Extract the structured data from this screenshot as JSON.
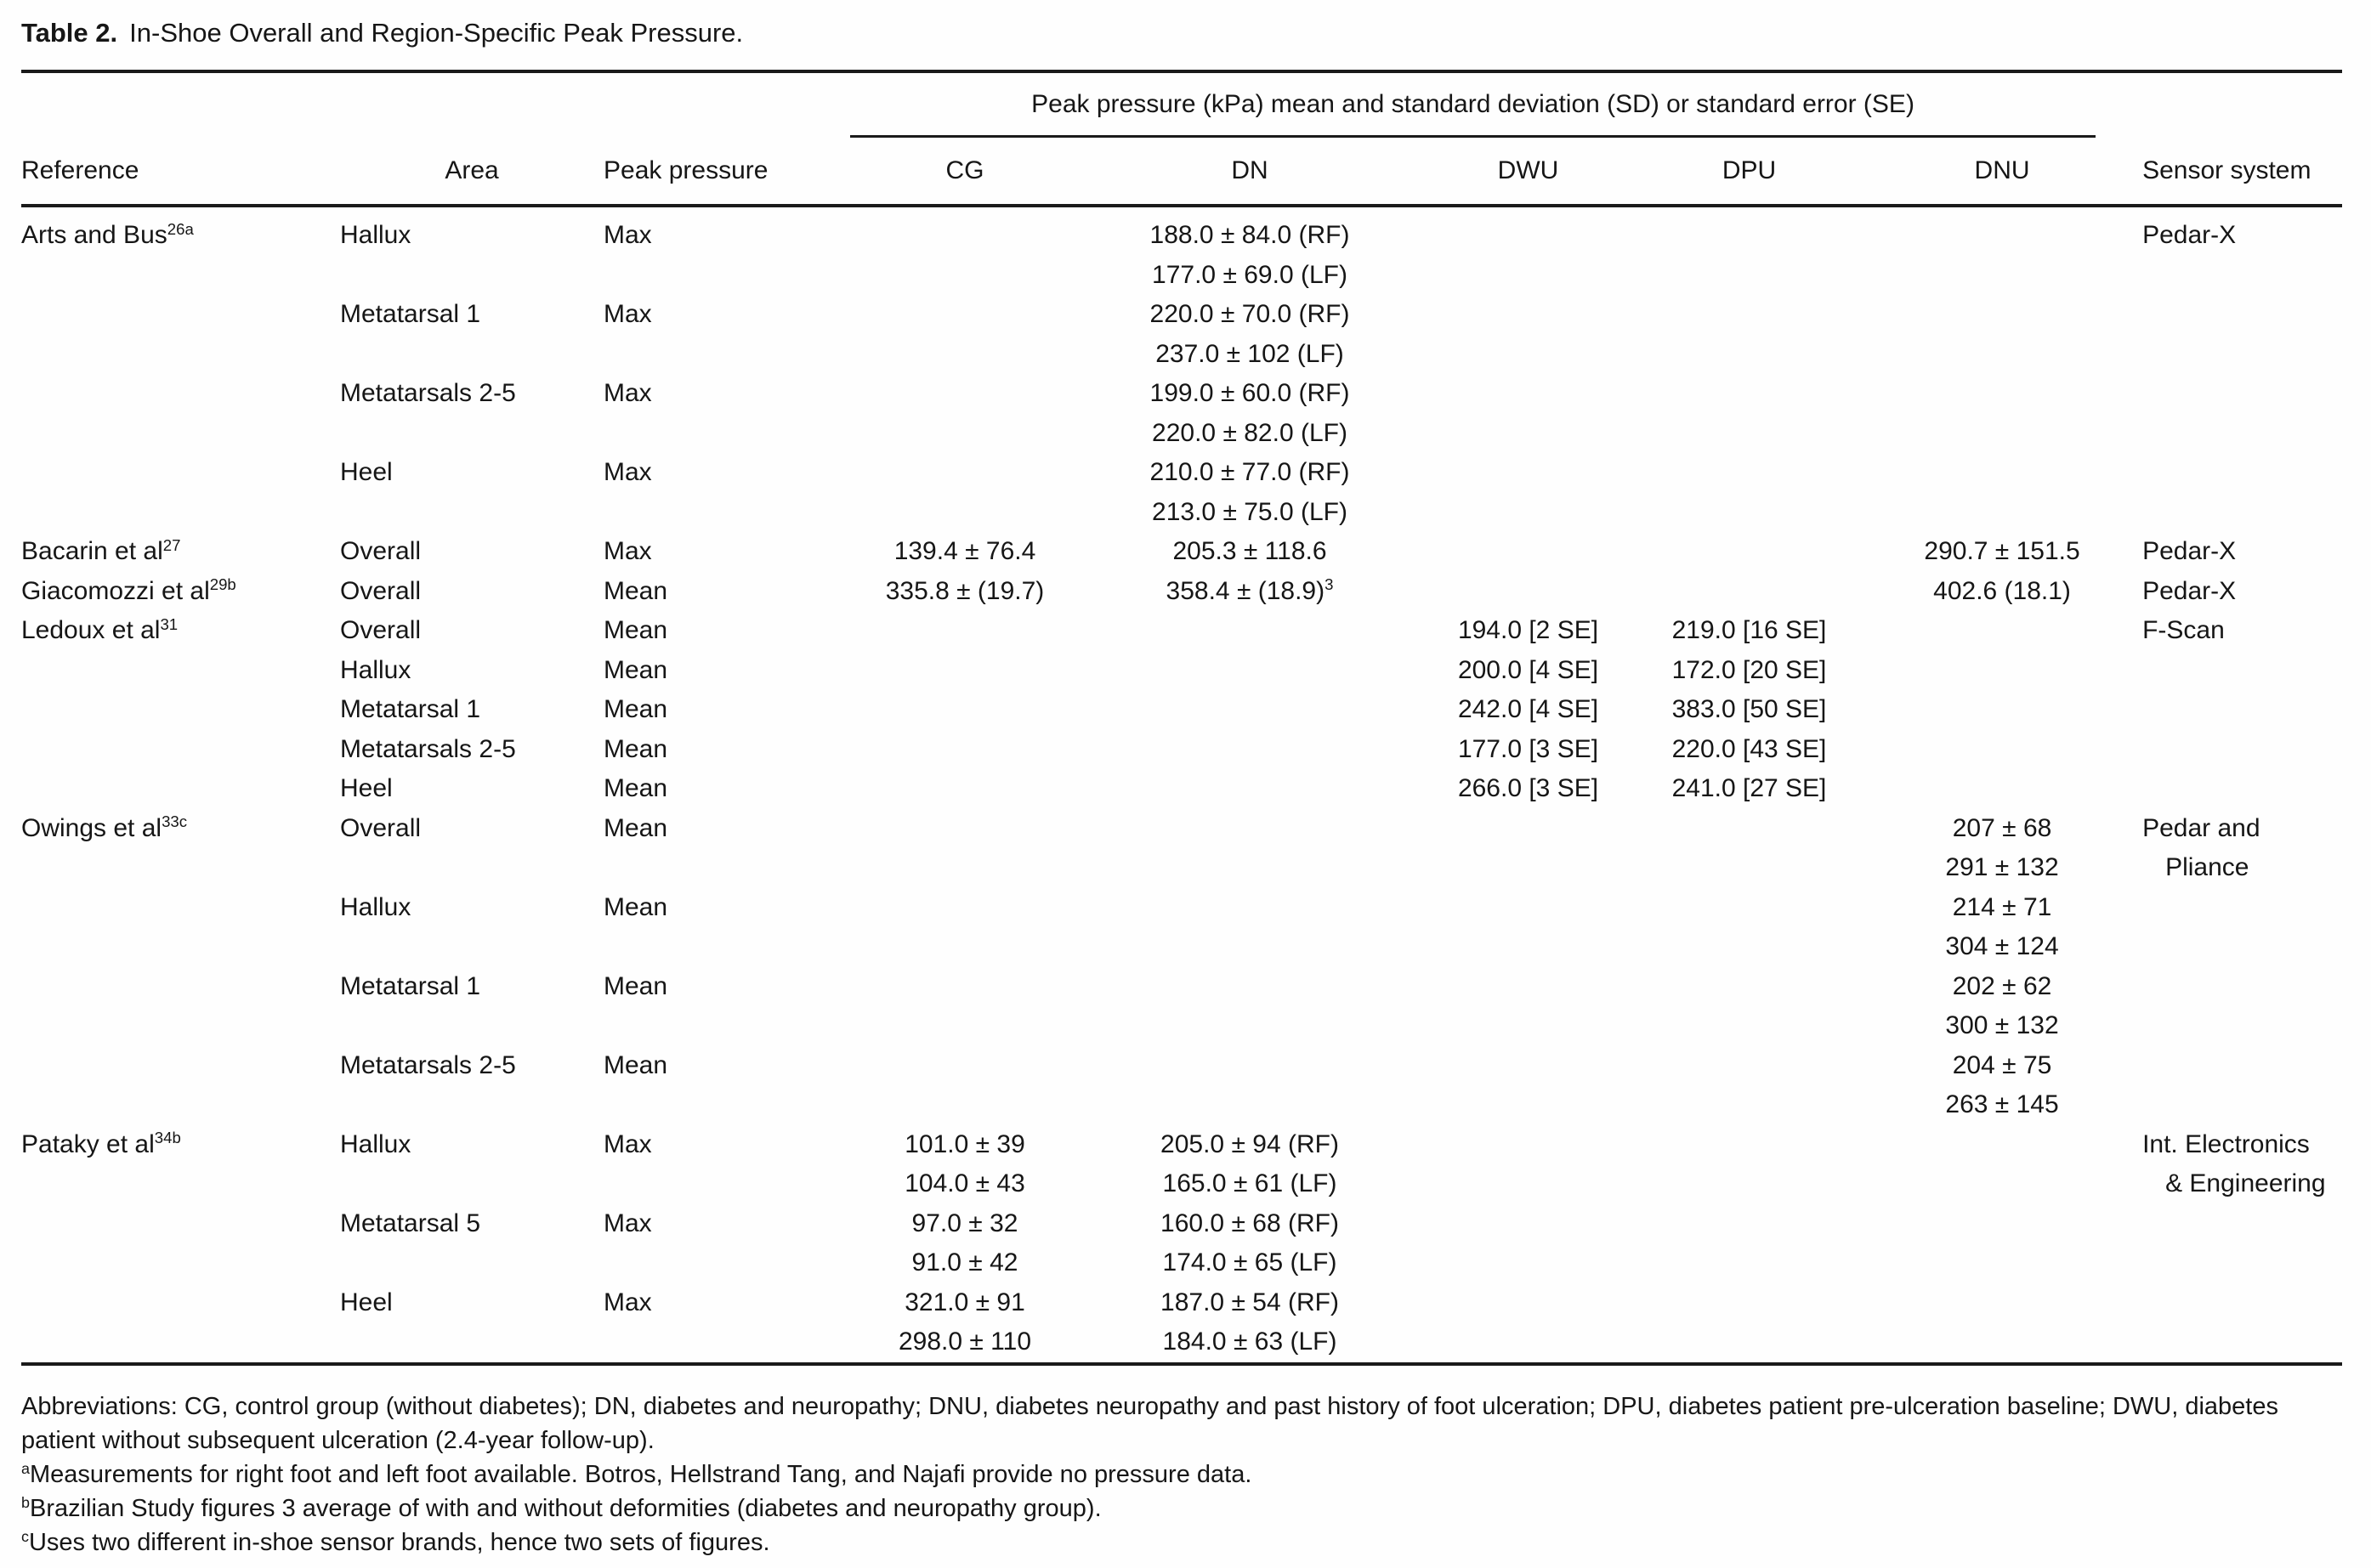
{
  "title": {
    "label": "Table 2.",
    "text": "In-Shoe Overall and Region-Specific Peak Pressure."
  },
  "table": {
    "spanner": "Peak pressure (kPa) mean and standard deviation (SD) or standard error (SE)",
    "columns": {
      "reference": "Reference",
      "area": "Area",
      "peak_pressure": "Peak pressure",
      "cg": "CG",
      "dn": "DN",
      "dwu": "DWU",
      "dpu": "DPU",
      "dnu": "DNU",
      "sensor_system": "Sensor system"
    },
    "rows": [
      {
        "ref": "Arts and Bus",
        "ref_sup": "26a",
        "area": "Hallux",
        "peak": "Max",
        "dn": [
          "188.0 ± 84.0 (RF)",
          "177.0 ± 69.0 (LF)"
        ],
        "sensor": [
          "Pedar-X"
        ]
      },
      {
        "area": "Metatarsal 1",
        "peak": "Max",
        "dn": [
          "220.0 ± 70.0 (RF)",
          "237.0 ± 102 (LF)"
        ]
      },
      {
        "area": "Metatarsals 2-5",
        "peak": "Max",
        "dn": [
          "199.0 ± 60.0 (RF)",
          "220.0 ± 82.0 (LF)"
        ]
      },
      {
        "area": "Heel",
        "peak": "Max",
        "dn": [
          "210.0 ± 77.0 (RF)",
          "213.0 ± 75.0 (LF)"
        ]
      },
      {
        "ref": "Bacarin et al",
        "ref_sup": "27",
        "area": "Overall",
        "peak": "Max",
        "cg": [
          "139.4 ± 76.4"
        ],
        "dn": [
          "205.3 ± 118.6"
        ],
        "dnu": [
          "290.7 ± 151.5"
        ],
        "sensor": [
          "Pedar-X"
        ]
      },
      {
        "ref": "Giacomozzi et al",
        "ref_sup": "29b",
        "area": "Overall",
        "peak": "Mean",
        "cg": [
          "335.8 ± (19.7)"
        ],
        "dn": [
          {
            "t": "358.4 ± (18.9)",
            "sup": "3"
          }
        ],
        "dnu": [
          "402.6 (18.1)"
        ],
        "sensor": [
          "Pedar-X"
        ]
      },
      {
        "ref": "Ledoux et al",
        "ref_sup": "31",
        "area": "Overall",
        "peak": "Mean",
        "dwu": [
          "194.0 [2 SE]"
        ],
        "dpu": [
          "219.0 [16 SE]"
        ],
        "sensor": [
          "F-Scan"
        ]
      },
      {
        "area": "Hallux",
        "peak": "Mean",
        "dwu": [
          "200.0 [4 SE]"
        ],
        "dpu": [
          "172.0 [20 SE]"
        ]
      },
      {
        "area": "Metatarsal 1",
        "peak": "Mean",
        "dwu": [
          "242.0 [4 SE]"
        ],
        "dpu": [
          "383.0 [50 SE]"
        ]
      },
      {
        "area": "Metatarsals 2-5",
        "peak": "Mean",
        "dwu": [
          "177.0 [3 SE]"
        ],
        "dpu": [
          "220.0 [43 SE]"
        ]
      },
      {
        "area": "Heel",
        "peak": "Mean",
        "dwu": [
          "266.0 [3 SE]"
        ],
        "dpu": [
          "241.0 [27 SE]"
        ]
      },
      {
        "ref": "Owings et al",
        "ref_sup": "33c",
        "area": "Overall",
        "peak": "Mean",
        "dnu": [
          "207 ± 68",
          "291 ± 132"
        ],
        "sensor": [
          "Pedar and",
          "Pliance"
        ]
      },
      {
        "area": "Hallux",
        "peak": "Mean",
        "dnu": [
          "214 ± 71",
          "304 ± 124"
        ]
      },
      {
        "area": "Metatarsal 1",
        "peak": "Mean",
        "dnu": [
          "202 ± 62",
          "300 ± 132"
        ]
      },
      {
        "area": "Metatarsals 2-5",
        "peak": "Mean",
        "dnu": [
          "204 ± 75",
          "263 ± 145"
        ]
      },
      {
        "ref": "Pataky et al",
        "ref_sup": "34b",
        "area": "Hallux",
        "peak": "Max",
        "cg": [
          "101.0 ± 39",
          "104.0 ± 43"
        ],
        "dn": [
          "205.0 ± 94 (RF)",
          "165.0 ± 61 (LF)"
        ],
        "sensor": [
          "Int. Electronics",
          "& Engineering"
        ]
      },
      {
        "area": "Metatarsal 5",
        "peak": "Max",
        "cg": [
          "97.0 ± 32",
          "91.0 ± 42"
        ],
        "dn": [
          "160.0 ± 68 (RF)",
          "174.0 ± 65 (LF)"
        ]
      },
      {
        "area": "Heel",
        "peak": "Max",
        "cg": [
          "321.0 ± 91",
          "298.0 ± 110"
        ],
        "dn": [
          "187.0 ± 54 (RF)",
          "184.0 ± 63 (LF)"
        ]
      }
    ]
  },
  "footnotes": {
    "abbreviations": "Abbreviations: CG, control group (without diabetes); DN, diabetes and neuropathy; DNU, diabetes neuropathy and past history of foot ulceration; DPU, diabetes patient pre-ulceration baseline; DWU, diabetes patient without subsequent ulceration (2.4-year follow-up).",
    "notes": [
      {
        "sup": "a",
        "text": "Measurements for right foot and left foot available. Botros, Hellstrand Tang, and Najafi provide no pressure data."
      },
      {
        "sup": "b",
        "text": "Brazilian Study figures 3 average of with and without deformities (diabetes and neuropathy group)."
      },
      {
        "sup": "c",
        "text": "Uses two different in-shoe sensor brands, hence two sets of figures."
      }
    ]
  }
}
